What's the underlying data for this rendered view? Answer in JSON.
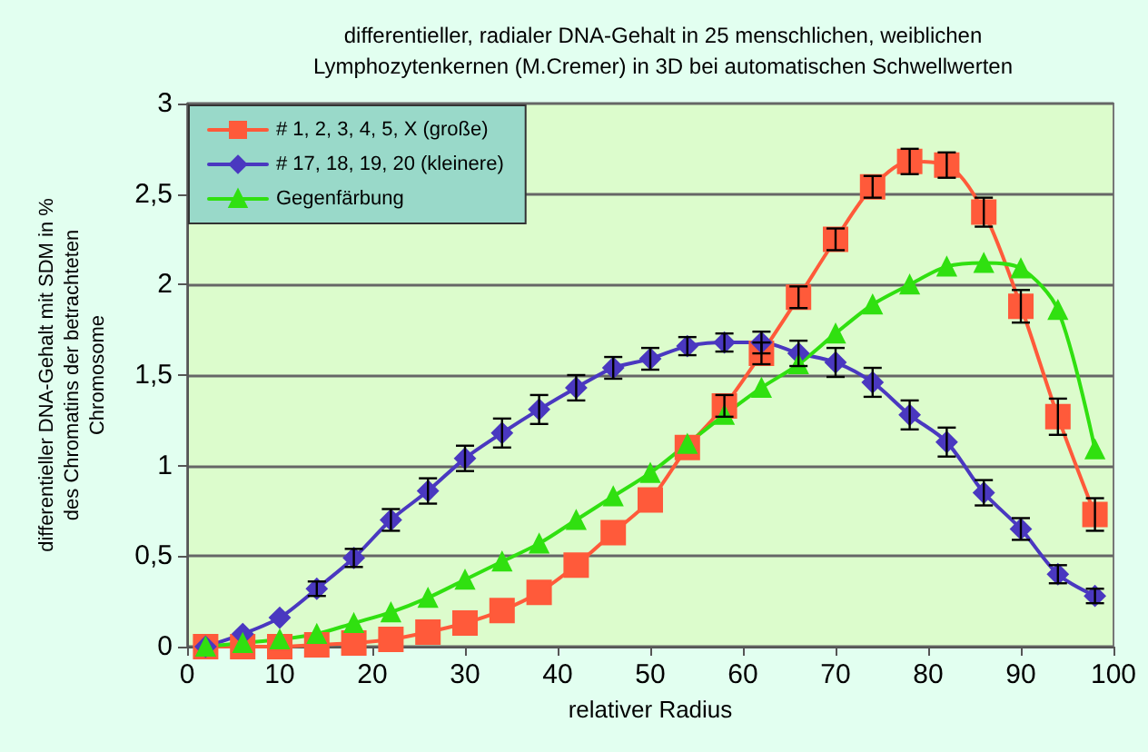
{
  "chart_data": {
    "type": "line",
    "title": "differentieller, radialer DNA-Gehalt in 25 menschlichen, weiblichen\nLymphozytenkernen (M.Cremer) in 3D bei automatischen Schwellwerten",
    "xlabel": "relativer Radius",
    "ylabel": "differentieller DNA-Gehalt mit SDM in %\ndes Chromatins der betrachteten\nChromosome",
    "x": [
      2,
      6,
      10,
      14,
      18,
      22,
      26,
      30,
      34,
      38,
      42,
      46,
      50,
      54,
      58,
      62,
      66,
      70,
      74,
      78,
      82,
      86,
      90,
      94,
      98
    ],
    "series": [
      {
        "name": "# 1, 2, 3, 4, 5, X (große)",
        "color": "#ff5a3a",
        "marker": "square",
        "values": [
          0,
          0,
          0,
          0.01,
          0.02,
          0.04,
          0.08,
          0.13,
          0.2,
          0.3,
          0.45,
          0.63,
          0.81,
          1.1,
          1.33,
          1.62,
          1.93,
          2.25,
          2.54,
          2.68,
          2.66,
          2.4,
          1.88,
          1.27,
          0.73
        ],
        "errors": [
          null,
          null,
          null,
          null,
          null,
          null,
          null,
          null,
          null,
          null,
          null,
          null,
          null,
          null,
          0.06,
          0.06,
          0.06,
          0.06,
          0.06,
          0.07,
          0.07,
          0.08,
          0.09,
          0.1,
          0.09
        ]
      },
      {
        "name": "# 17, 18, 19, 20 (kleinere)",
        "color": "#4a38c0",
        "marker": "diamond",
        "values": [
          0,
          0.07,
          0.16,
          0.32,
          0.49,
          0.7,
          0.86,
          1.04,
          1.18,
          1.31,
          1.43,
          1.54,
          1.59,
          1.66,
          1.68,
          1.68,
          1.62,
          1.57,
          1.46,
          1.28,
          1.13,
          0.85,
          0.65,
          0.4,
          0.28
        ],
        "errors": [
          null,
          null,
          null,
          0.04,
          0.05,
          0.06,
          0.07,
          0.07,
          0.08,
          0.08,
          0.07,
          0.06,
          0.06,
          0.05,
          0.05,
          0.06,
          0.07,
          0.08,
          0.08,
          0.08,
          0.08,
          0.07,
          0.06,
          0.05,
          0.04
        ]
      },
      {
        "name": "Gegenfärbung",
        "color": "#30e010",
        "marker": "triangle",
        "values": [
          0,
          0.02,
          0.04,
          0.07,
          0.13,
          0.19,
          0.27,
          0.37,
          0.47,
          0.57,
          0.7,
          0.83,
          0.96,
          1.12,
          1.28,
          1.43,
          1.56,
          1.73,
          1.89,
          2.0,
          2.1,
          2.12,
          2.09,
          1.86,
          1.09
        ]
      }
    ],
    "xlim": [
      0,
      100
    ],
    "xticks": [
      0,
      10,
      20,
      30,
      40,
      50,
      60,
      70,
      80,
      90,
      100
    ],
    "ylim": [
      0,
      3
    ],
    "yticks": [
      0,
      {
        "value": 0.5,
        "label": "0,5"
      },
      1,
      {
        "value": 1.5,
        "label": "1,5"
      },
      2,
      {
        "value": 2.5,
        "label": "2,5"
      },
      3
    ],
    "grid": "y",
    "legend": "top left"
  }
}
